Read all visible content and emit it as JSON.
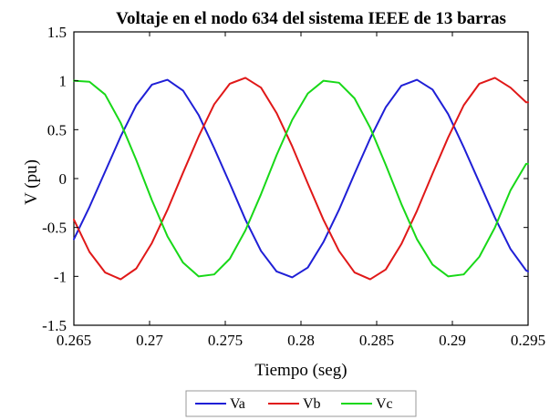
{
  "chart_data": {
    "type": "line",
    "title": "Voltaje en el nodo 634 del sistema IEEE de 13 barras",
    "xlabel": "Tiempo (seg)",
    "ylabel": "V (pu)",
    "xlim": [
      0.265,
      0.295
    ],
    "ylim": [
      -1.5,
      1.5
    ],
    "xticks": [
      0.265,
      0.27,
      0.275,
      0.28,
      0.285,
      0.29,
      0.295
    ],
    "xtick_labels": [
      "0.265",
      "0.27",
      "0.275",
      "0.28",
      "0.285",
      "0.29",
      "0.295"
    ],
    "yticks": [
      1.5,
      1,
      0.5,
      0,
      -0.5,
      -1,
      -1.5
    ],
    "ytick_labels": [
      "1.5",
      "1",
      "0.5",
      "0",
      "-0.5",
      "-1",
      "-1.5"
    ],
    "grid": false,
    "legend": "bottom-center",
    "series": [
      {
        "name": "Va",
        "color": "#1f1fd6",
        "x": [
          0.265,
          0.26603,
          0.26706,
          0.26809,
          0.26912,
          0.27015,
          0.27118,
          0.27221,
          0.27324,
          0.27427,
          0.2753,
          0.27633,
          0.27736,
          0.27839,
          0.27942,
          0.28045,
          0.28148,
          0.28251,
          0.28354,
          0.28457,
          0.2856,
          0.28663,
          0.28766,
          0.28869,
          0.28972,
          0.29075,
          0.29178,
          0.29281,
          0.29384,
          0.29487,
          0.295
        ],
        "values": [
          -0.62,
          -0.29,
          0.07,
          0.43,
          0.75,
          0.96,
          1.01,
          0.9,
          0.65,
          0.31,
          -0.05,
          -0.42,
          -0.74,
          -0.95,
          -1.01,
          -0.91,
          -0.65,
          -0.32,
          0.05,
          0.41,
          0.73,
          0.95,
          1.01,
          0.91,
          0.66,
          0.32,
          -0.04,
          -0.4,
          -0.72,
          -0.94,
          -0.95
        ]
      },
      {
        "name": "Vb",
        "color": "#e01818",
        "x": [
          0.265,
          0.26603,
          0.26706,
          0.26809,
          0.26912,
          0.27015,
          0.27118,
          0.27221,
          0.27324,
          0.27427,
          0.2753,
          0.27633,
          0.27736,
          0.27839,
          0.27942,
          0.28045,
          0.28148,
          0.28251,
          0.28354,
          0.28457,
          0.2856,
          0.28663,
          0.28766,
          0.28869,
          0.28972,
          0.29075,
          0.29178,
          0.29281,
          0.29384,
          0.29487,
          0.295
        ],
        "values": [
          -0.42,
          -0.75,
          -0.96,
          -1.03,
          -0.92,
          -0.66,
          -0.32,
          0.06,
          0.43,
          0.76,
          0.97,
          1.03,
          0.93,
          0.67,
          0.33,
          -0.05,
          -0.42,
          -0.74,
          -0.96,
          -1.03,
          -0.93,
          -0.67,
          -0.33,
          0.05,
          0.42,
          0.75,
          0.97,
          1.03,
          0.93,
          0.78,
          0.78
        ]
      },
      {
        "name": "Vc",
        "color": "#18d818",
        "x": [
          0.265,
          0.26603,
          0.26706,
          0.26809,
          0.26912,
          0.27015,
          0.27118,
          0.27221,
          0.27324,
          0.27427,
          0.2753,
          0.27633,
          0.27736,
          0.27839,
          0.27942,
          0.28045,
          0.28148,
          0.28251,
          0.28354,
          0.28457,
          0.2856,
          0.28663,
          0.28766,
          0.28869,
          0.28972,
          0.29075,
          0.29178,
          0.29281,
          0.29384,
          0.29487,
          0.295
        ],
        "values": [
          1.0,
          0.99,
          0.86,
          0.57,
          0.19,
          -0.22,
          -0.59,
          -0.86,
          -1.0,
          -0.98,
          -0.82,
          -0.53,
          -0.16,
          0.24,
          0.6,
          0.87,
          1.0,
          0.98,
          0.82,
          0.52,
          0.14,
          -0.26,
          -0.62,
          -0.88,
          -1.0,
          -0.98,
          -0.8,
          -0.5,
          -0.12,
          0.15,
          0.15
        ]
      }
    ]
  }
}
